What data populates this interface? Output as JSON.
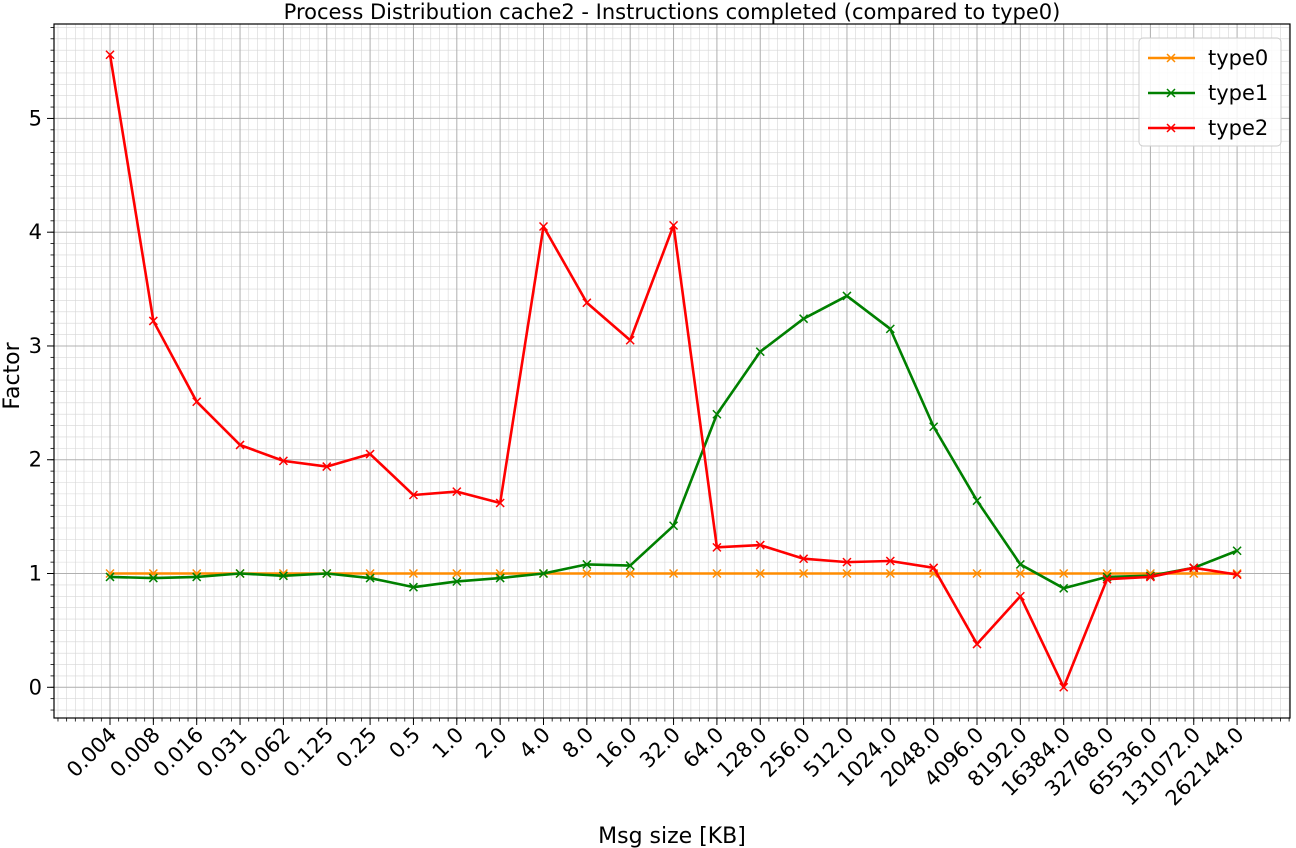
{
  "chart_data": {
    "type": "line",
    "title": "Process Distribution cache2 - Instructions completed (compared to type0)",
    "xlabel": "Msg size [KB]",
    "ylabel": "Factor",
    "ylim": [
      -0.27,
      5.83
    ],
    "yticks": [
      0,
      1,
      2,
      3,
      4,
      5
    ],
    "grid": true,
    "legend_position": "top-right",
    "categories": [
      "0.004",
      "0.008",
      "0.016",
      "0.031",
      "0.062",
      "0.125",
      "0.25",
      "0.5",
      "1.0",
      "2.0",
      "4.0",
      "8.0",
      "16.0",
      "32.0",
      "64.0",
      "128.0",
      "256.0",
      "512.0",
      "1024.0",
      "2048.0",
      "4096.0",
      "8192.0",
      "16384.0",
      "32768.0",
      "65536.0",
      "131072.0",
      "262144.0"
    ],
    "series": [
      {
        "name": "type0",
        "color": "#ff8c00",
        "values": [
          1,
          1,
          1,
          1,
          1,
          1,
          1,
          1,
          1,
          1,
          1,
          1,
          1,
          1,
          1,
          1,
          1,
          1,
          1,
          1,
          1,
          1,
          1,
          1,
          1,
          1,
          1
        ]
      },
      {
        "name": "type1",
        "color": "#008000",
        "values": [
          0.97,
          0.96,
          0.97,
          1.0,
          0.98,
          1.0,
          0.96,
          0.88,
          0.93,
          0.96,
          1.0,
          1.08,
          1.07,
          1.42,
          2.4,
          2.95,
          3.24,
          3.44,
          3.15,
          2.29,
          1.64,
          1.08,
          0.87,
          0.97,
          0.98,
          1.05,
          1.2
        ]
      },
      {
        "name": "type2",
        "color": "#ff0000",
        "values": [
          5.56,
          3.22,
          2.51,
          2.13,
          1.99,
          1.94,
          2.05,
          1.69,
          1.72,
          1.62,
          4.05,
          3.38,
          3.05,
          4.06,
          1.23,
          1.25,
          1.13,
          1.1,
          1.11,
          1.05,
          0.38,
          0.8,
          0.0,
          0.95,
          0.97,
          1.05,
          0.99
        ]
      }
    ]
  }
}
